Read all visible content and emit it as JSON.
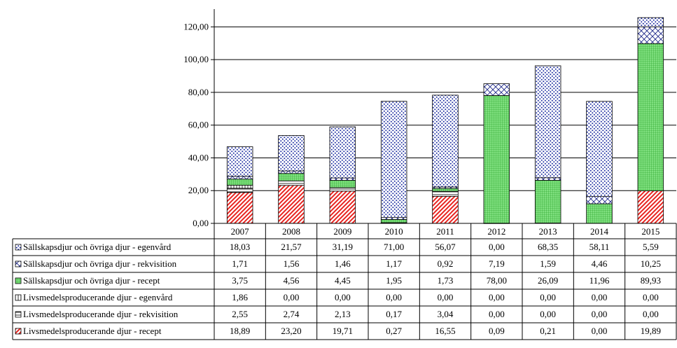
{
  "chart_data": {
    "type": "bar",
    "stacked": true,
    "title": "",
    "xlabel": "",
    "ylabel": "",
    "ylim": [
      0,
      130
    ],
    "yticks": [
      "0,00",
      "20,00",
      "40,00",
      "60,00",
      "80,00",
      "100,00",
      "120,00"
    ],
    "ytick_values": [
      0,
      20,
      40,
      60,
      80,
      100,
      120
    ],
    "grid": true,
    "legend_placement": "data-table-left",
    "categories": [
      "2007",
      "2008",
      "2009",
      "2010",
      "2011",
      "2012",
      "2013",
      "2014",
      "2015"
    ],
    "series": [
      {
        "name": "Livsmedelsproducerande djur - recept",
        "pattern": "red-diagonal",
        "color": "#e8231f",
        "values": [
          18.89,
          23.2,
          19.71,
          0.27,
          16.55,
          0.09,
          0.21,
          0.0,
          19.89
        ],
        "labels": [
          "18,89",
          "23,20",
          "19,71",
          "0,27",
          "16,55",
          "0,09",
          "0,21",
          "0,00",
          "19,89"
        ]
      },
      {
        "name": "Livsmedelsproducerande djur - rekvisition",
        "pattern": "horizontal-lines",
        "color": "#000000",
        "values": [
          2.55,
          2.74,
          2.13,
          0.17,
          3.04,
          0.0,
          0.0,
          0.0,
          0.0
        ],
        "labels": [
          "2,55",
          "2,74",
          "2,13",
          "0,17",
          "3,04",
          "0,00",
          "0,00",
          "0,00",
          "0,00"
        ]
      },
      {
        "name": "Livsmedelsproducerande djur - egenvård",
        "pattern": "vertical-lines",
        "color": "#000000",
        "values": [
          1.86,
          0.0,
          0.0,
          0.0,
          0.0,
          0.0,
          0.0,
          0.0,
          0.0
        ],
        "labels": [
          "1,86",
          "0,00",
          "0,00",
          "0,00",
          "0,00",
          "0,00",
          "0,00",
          "0,00",
          "0,00"
        ]
      },
      {
        "name": "Sällskapsdjur och övriga djur - recept",
        "pattern": "green-grid",
        "color": "#2db82d",
        "values": [
          3.75,
          4.56,
          4.45,
          1.95,
          1.73,
          78.0,
          26.09,
          11.96,
          89.93
        ],
        "labels": [
          "3,75",
          "4,56",
          "4,45",
          "1,95",
          "1,73",
          "78,00",
          "26,09",
          "11,96",
          "89,93"
        ]
      },
      {
        "name": "Sällskapsdjur och övriga djur - rekvisition",
        "pattern": "navy-crosshatch",
        "color": "#1f2a8a",
        "values": [
          1.71,
          1.56,
          1.46,
          1.17,
          0.92,
          7.19,
          1.59,
          4.46,
          10.25
        ],
        "labels": [
          "1,71",
          "1,56",
          "1,46",
          "1,17",
          "0,92",
          "7,19",
          "1,59",
          "4,46",
          "10,25"
        ]
      },
      {
        "name": "Sällskapsdjur och övriga djur - egenvård",
        "pattern": "blue-dots",
        "color": "#1a2aa0",
        "values": [
          18.03,
          21.57,
          31.19,
          71.0,
          56.07,
          0.0,
          68.35,
          58.11,
          5.59
        ],
        "labels": [
          "18,03",
          "21,57",
          "31,19",
          "71,00",
          "56,07",
          "0,00",
          "68,35",
          "58,11",
          "5,59"
        ]
      }
    ]
  }
}
